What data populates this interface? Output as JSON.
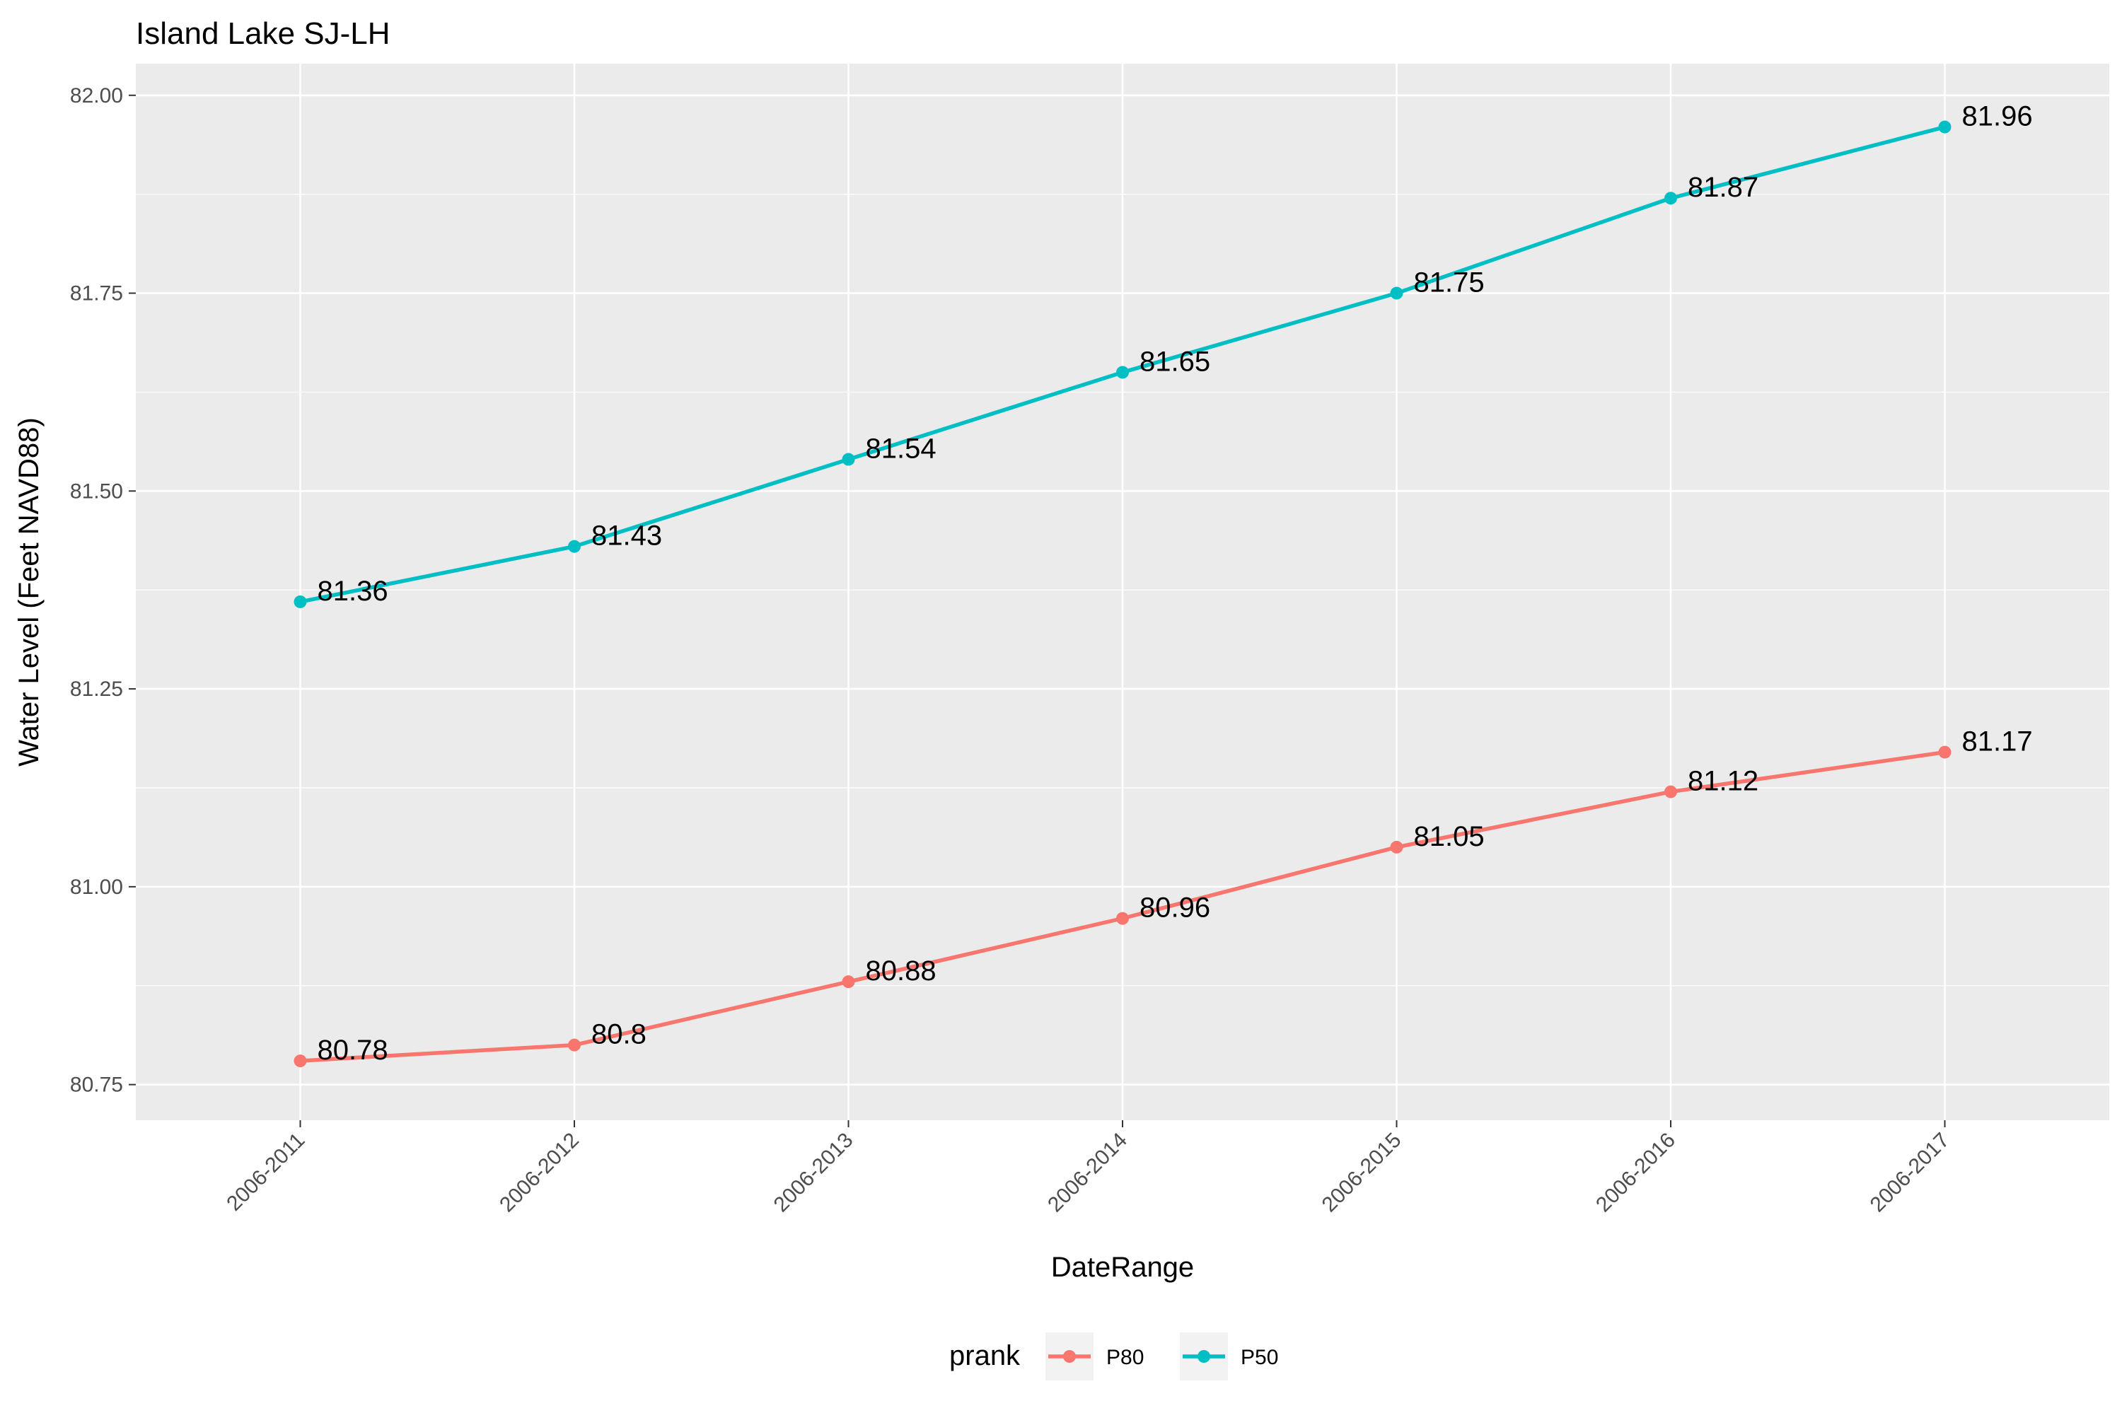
{
  "chart_data": {
    "type": "line",
    "title": "Island Lake SJ-LH",
    "xlabel": "DateRange",
    "ylabel": "Water Level (Feet NAVD88)",
    "categories": [
      "2006-2011",
      "2006-2012",
      "2006-2013",
      "2006-2014",
      "2006-2015",
      "2006-2016",
      "2006-2017"
    ],
    "ylim": [
      80.705,
      82.04
    ],
    "yticks": [
      "80.75",
      "81.00",
      "81.25",
      "81.50",
      "81.75",
      "82.00"
    ],
    "series": [
      {
        "name": "P80",
        "color": "#F8766D",
        "values": [
          80.78,
          80.8,
          80.88,
          80.96,
          81.05,
          81.12,
          81.17
        ],
        "labels": [
          "80.78",
          "80.8",
          "80.88",
          "80.96",
          "81.05",
          "81.12",
          "81.17"
        ]
      },
      {
        "name": "P50",
        "color": "#00BFC4",
        "values": [
          81.36,
          81.43,
          81.54,
          81.65,
          81.75,
          81.87,
          81.96
        ],
        "labels": [
          "81.36",
          "81.43",
          "81.54",
          "81.65",
          "81.75",
          "81.87",
          "81.96"
        ]
      }
    ],
    "grid": true,
    "legend": {
      "title": "prank",
      "position": "bottom",
      "entries": [
        "P80",
        "P50"
      ]
    }
  },
  "colors": {
    "panel_background": "#EBEBEB",
    "grid_major": "#FFFFFF",
    "tick_text": "#4D4D4D"
  }
}
